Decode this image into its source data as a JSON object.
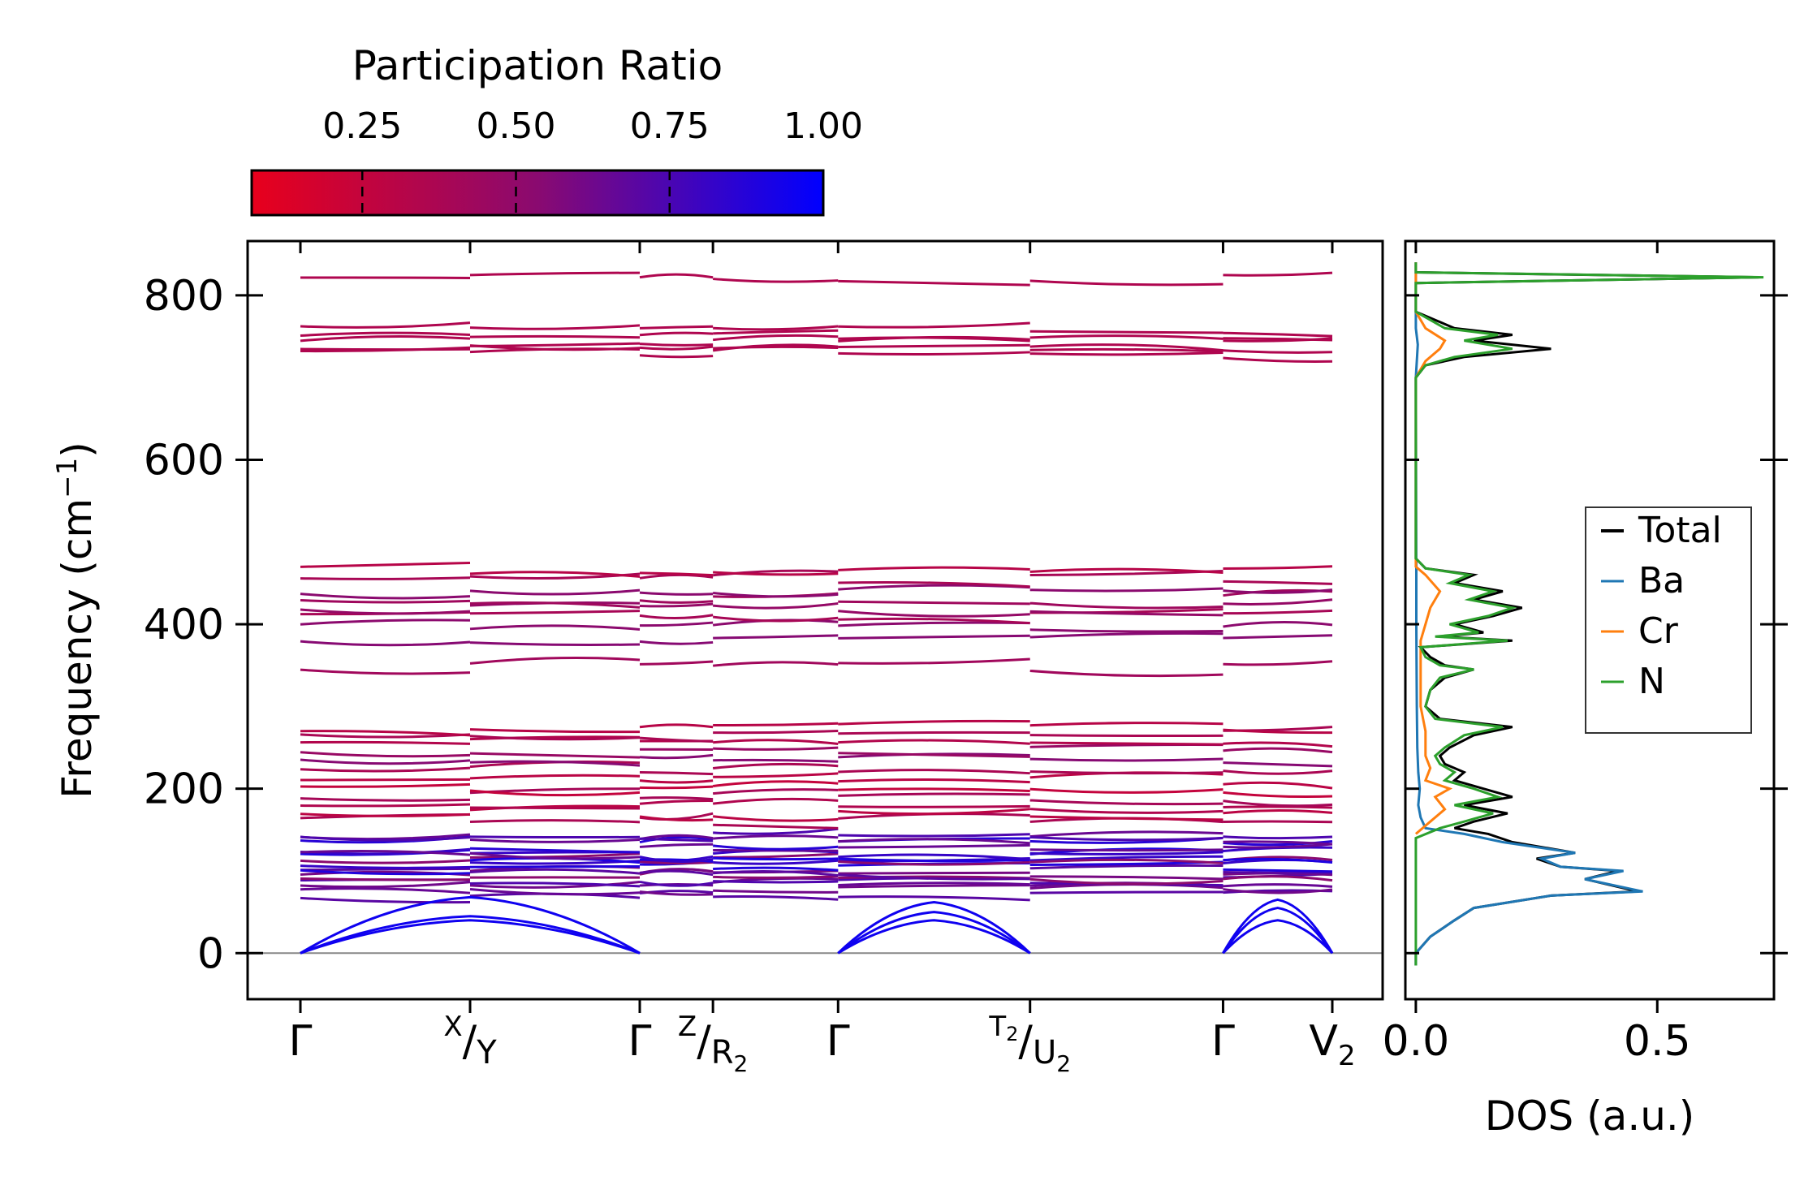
{
  "chart_data": [
    {
      "type": "line",
      "name": "phonon-band-structure",
      "ylabel": "Frequency (cm",
      "ylabel_sup": "−1",
      "ylabel_end": ")",
      "ylim": [
        -55,
        865
      ],
      "yticks": [
        "0",
        "200",
        "400",
        "600",
        "800"
      ],
      "ytick_values": [
        0,
        200,
        400,
        600,
        800
      ],
      "segment_boundaries": [
        0,
        160,
        320,
        389,
        507,
        688,
        870,
        973
      ],
      "path_points": [
        {
          "pos": 0,
          "label": "Γ"
        },
        {
          "pos": 160,
          "label_top": "X",
          "label_bottom": "Y"
        },
        {
          "pos": 320,
          "label": "Γ"
        },
        {
          "pos": 389,
          "label_top": "Z",
          "label_bottom": "R",
          "label_sub": "2"
        },
        {
          "pos": 507,
          "label": "Γ"
        },
        {
          "pos": 688,
          "label_top": "T",
          "label_top_sub": "2",
          "label_bottom": "U",
          "label_sub": "2"
        },
        {
          "pos": 870,
          "label": "Γ"
        },
        {
          "pos": 973,
          "label": "V",
          "label_sub": "2"
        }
      ],
      "acoustic_branches": [
        {
          "segment": 0,
          "start": 0,
          "mid": 40,
          "end": 0
        },
        {
          "segment": 0,
          "start": 0,
          "mid": 45,
          "end": 0
        },
        {
          "segment": 0,
          "start": 0,
          "mid": 68,
          "end": 0
        },
        {
          "segment": 2,
          "start": 0,
          "mid": 40,
          "end": 0
        },
        {
          "segment": 2,
          "start": 0,
          "mid": 50,
          "end": 0
        },
        {
          "segment": 2,
          "start": 0,
          "mid": 62,
          "end": 0
        },
        {
          "segment": 3,
          "start": 0,
          "mid": 40,
          "end": 0
        },
        {
          "segment": 3,
          "start": 0,
          "mid": 55,
          "end": 0
        },
        {
          "segment": 3,
          "start": 0,
          "mid": 65,
          "end": 0
        }
      ],
      "optical_frequencies": [
        72,
        78,
        82,
        88,
        92,
        96,
        100,
        104,
        108,
        112,
        116,
        120,
        126,
        132,
        138,
        142,
        160,
        170,
        178,
        190,
        200,
        210,
        222,
        236,
        248,
        258,
        266,
        275,
        348,
        380,
        395,
        410,
        420,
        430,
        440,
        455,
        465,
        728,
        735,
        742,
        750,
        758,
        822
      ],
      "colorbar": {
        "title": "Participation Ratio",
        "ticks": [
          "0.25",
          "0.50",
          "0.75",
          "1.00"
        ],
        "tick_values": [
          0.25,
          0.5,
          0.75,
          1.0
        ],
        "range": [
          0.07,
          1.0
        ],
        "color_low": "#e8001c",
        "color_mid": "#8a0a70",
        "color_high": "#0000ff"
      }
    },
    {
      "type": "line",
      "name": "density-of-states",
      "xlabel": "DOS (a.u.)",
      "xticks": [
        "0.0",
        "0.5"
      ],
      "xtick_values": [
        0.0,
        0.5
      ],
      "xlim": [
        -0.02,
        0.74
      ],
      "ylim": [
        -55,
        865
      ],
      "legend": {
        "placement": "center-right",
        "entries": [
          {
            "label": "Total",
            "color": "#000000"
          },
          {
            "label": "Ba",
            "color": "#1f77b4"
          },
          {
            "label": "Cr",
            "color": "#ff7f0e"
          },
          {
            "label": "N",
            "color": "#2ca02c"
          }
        ]
      },
      "series": [
        {
          "name": "Total",
          "color": "#000000",
          "freq": [
            -15,
            0,
            20,
            40,
            55,
            70,
            75,
            90,
            100,
            105,
            115,
            122,
            135,
            145,
            152,
            160,
            170,
            180,
            190,
            200,
            210,
            220,
            230,
            240,
            250,
            265,
            275,
            285,
            300,
            320,
            335,
            345,
            350,
            360,
            372,
            380,
            385,
            390,
            400,
            410,
            420,
            430,
            440,
            450,
            460,
            468,
            480,
            600,
            700,
            715,
            725,
            735,
            745,
            752,
            760,
            770,
            780,
            815,
            822,
            828,
            840
          ],
          "dos": [
            0,
            0,
            0.03,
            0.08,
            0.12,
            0.28,
            0.46,
            0.35,
            0.42,
            0.3,
            0.25,
            0.33,
            0.2,
            0.15,
            0.08,
            0.12,
            0.19,
            0.1,
            0.2,
            0.14,
            0.08,
            0.1,
            0.06,
            0.05,
            0.07,
            0.12,
            0.2,
            0.05,
            0.02,
            0.03,
            0.06,
            0.12,
            0.06,
            0.03,
            0.01,
            0.2,
            0.05,
            0.14,
            0.08,
            0.16,
            0.22,
            0.12,
            0.18,
            0.08,
            0.12,
            0.02,
            0.0,
            0.0,
            0.0,
            0.02,
            0.1,
            0.28,
            0.12,
            0.2,
            0.08,
            0.04,
            0.0,
            0.0,
            0.71,
            0.0,
            0.0
          ]
        },
        {
          "name": "Ba",
          "color": "#1f77b4",
          "freq": [
            -15,
            0,
            20,
            40,
            55,
            70,
            75,
            90,
            100,
            105,
            115,
            122,
            135,
            145,
            152,
            165,
            180,
            200,
            220,
            250,
            300,
            400,
            460,
            700,
            740,
            760,
            840
          ],
          "dos": [
            0,
            0,
            0.03,
            0.08,
            0.12,
            0.28,
            0.47,
            0.35,
            0.43,
            0.3,
            0.26,
            0.33,
            0.18,
            0.1,
            0.02,
            0.01,
            0.005,
            0.008,
            0.005,
            0.003,
            0.002,
            0.001,
            0.001,
            0.0,
            0.004,
            0.0,
            0.0
          ]
        },
        {
          "name": "Cr",
          "color": "#ff7f0e",
          "freq": [
            145,
            160,
            175,
            190,
            200,
            210,
            225,
            240,
            270,
            300,
            350,
            380,
            400,
            420,
            440,
            460,
            470,
            700,
            720,
            735,
            745,
            760,
            780,
            840
          ],
          "dos": [
            0.0,
            0.03,
            0.06,
            0.04,
            0.07,
            0.02,
            0.03,
            0.02,
            0.02,
            0.01,
            0.01,
            0.01,
            0.02,
            0.03,
            0.05,
            0.02,
            0.0,
            0.0,
            0.02,
            0.05,
            0.06,
            0.02,
            0.0,
            0.0
          ]
        },
        {
          "name": "N",
          "color": "#2ca02c",
          "freq": [
            -15,
            140,
            152,
            160,
            170,
            180,
            190,
            200,
            210,
            220,
            230,
            240,
            250,
            265,
            275,
            285,
            300,
            320,
            335,
            345,
            350,
            360,
            372,
            380,
            385,
            390,
            400,
            410,
            420,
            430,
            440,
            450,
            460,
            468,
            480,
            600,
            700,
            715,
            725,
            735,
            745,
            752,
            760,
            770,
            780,
            815,
            822,
            828,
            840
          ],
          "dos": [
            0.0,
            0.0,
            0.05,
            0.1,
            0.16,
            0.08,
            0.17,
            0.12,
            0.06,
            0.08,
            0.05,
            0.04,
            0.06,
            0.1,
            0.18,
            0.04,
            0.02,
            0.03,
            0.05,
            0.12,
            0.05,
            0.02,
            0.01,
            0.19,
            0.04,
            0.13,
            0.07,
            0.15,
            0.2,
            0.11,
            0.16,
            0.07,
            0.11,
            0.02,
            0.0,
            0.0,
            0.0,
            0.02,
            0.08,
            0.2,
            0.1,
            0.17,
            0.06,
            0.03,
            0.0,
            0.0,
            0.72,
            0.0,
            0.0
          ]
        }
      ]
    }
  ]
}
